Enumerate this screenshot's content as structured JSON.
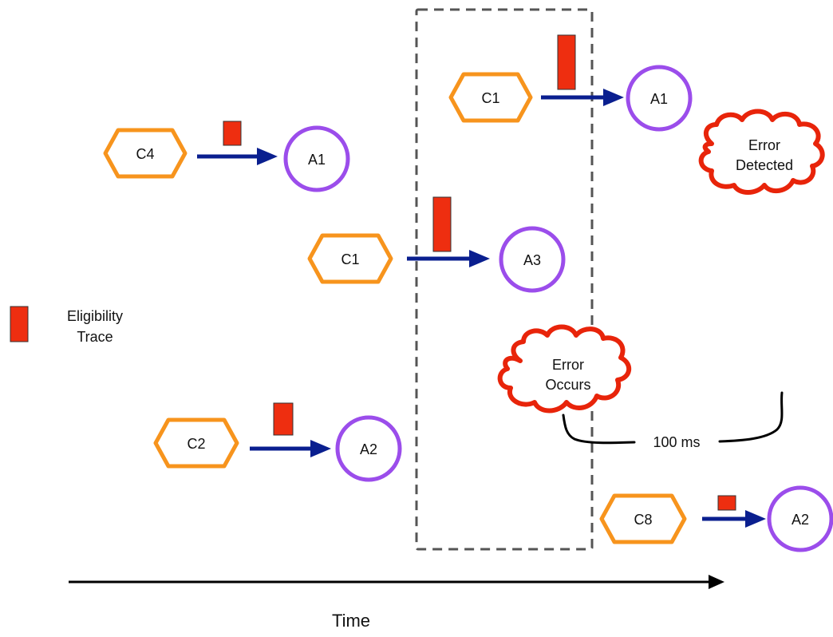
{
  "colors": {
    "hexagon_stroke": "#F7941D",
    "circle_stroke": "#9B4DEB",
    "arrow": "#0A1F8F",
    "trace_fill": "#EE2E10",
    "cloud_stroke": "#E8240A",
    "dashed_box": "#555555"
  },
  "events": [
    {
      "id": "c4-a1",
      "cue": "C4",
      "action": "A1",
      "trace_level": 0.25
    },
    {
      "id": "c1-a1",
      "cue": "C1",
      "action": "A1",
      "trace_level": 0.7
    },
    {
      "id": "c1-a3",
      "cue": "C1",
      "action": "A3",
      "trace_level": 0.7
    },
    {
      "id": "c2-a2",
      "cue": "C2",
      "action": "A2",
      "trace_level": 0.4
    },
    {
      "id": "c8-a2",
      "cue": "C8",
      "action": "A2",
      "trace_level": 0.2
    }
  ],
  "legend": {
    "line1": "Eligibility",
    "line2": "Trace"
  },
  "error_occurs": {
    "line1": "Error",
    "line2": "Occurs"
  },
  "error_detected": {
    "line1": "Error",
    "line2": "Detected"
  },
  "delay_label": "100 ms",
  "axis_label": "Time"
}
